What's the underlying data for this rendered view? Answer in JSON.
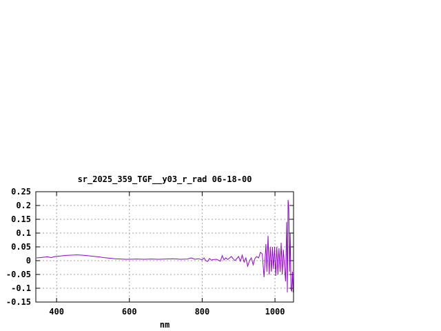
{
  "chart_data": {
    "type": "line",
    "title": "sr_2025_359_TGF__y03_r_rad 06-18-00",
    "xlabel": "nm",
    "ylabel": "",
    "xlim": [
      343,
      1051
    ],
    "ylim": [
      -0.15,
      0.25
    ],
    "grid": true,
    "x_ticks": [
      400,
      600,
      800,
      1000
    ],
    "x_tick_labels": [
      "400",
      "600",
      "800",
      "1000"
    ],
    "y_ticks": [
      -0.15,
      -0.1,
      -0.05,
      0,
      0.05,
      0.1,
      0.15,
      0.2,
      0.25
    ],
    "y_tick_labels": [
      "-0.15",
      "-0.1",
      "-0.05",
      "0",
      "0.05",
      "0.1",
      "0.15",
      "0.2",
      "0.25"
    ],
    "series_color": "#9400d3",
    "series": [
      {
        "x": [
          345,
          360,
          375,
          385,
          395,
          410,
          425,
          440,
          455,
          470,
          485,
          500,
          515,
          530,
          545,
          560,
          575,
          590,
          600,
          620,
          640,
          660,
          680,
          700,
          720,
          740,
          760,
          770,
          780,
          790,
          800,
          805,
          810,
          815,
          820,
          825,
          830,
          840,
          850,
          855,
          860,
          865,
          870,
          880,
          885,
          890,
          900,
          905,
          910,
          915,
          920,
          925,
          930,
          935,
          940,
          945,
          950,
          955,
          960,
          965,
          970,
          975,
          978,
          981,
          984,
          987,
          990,
          993,
          996,
          999,
          1002,
          1005,
          1008,
          1011,
          1014,
          1017,
          1020,
          1023,
          1026,
          1029,
          1032,
          1034,
          1036,
          1038,
          1040,
          1042,
          1044,
          1046,
          1048,
          1050
        ],
        "y": [
          0.01,
          0.012,
          0.014,
          0.011,
          0.015,
          0.017,
          0.019,
          0.02,
          0.021,
          0.02,
          0.018,
          0.016,
          0.014,
          0.011,
          0.009,
          0.007,
          0.006,
          0.005,
          0.005,
          0.006,
          0.005,
          0.006,
          0.005,
          0.006,
          0.007,
          0.005,
          0.006,
          0.01,
          0.005,
          0.007,
          0.003,
          0.01,
          0.0,
          -0.003,
          0.008,
          0.002,
          0.004,
          0.005,
          -0.002,
          0.018,
          0.003,
          0.01,
          0.004,
          0.015,
          0.007,
          0.0,
          0.015,
          -0.002,
          0.02,
          -0.005,
          0.01,
          -0.02,
          0.0,
          0.01,
          -0.015,
          0.008,
          0.015,
          0.01,
          0.03,
          0.025,
          -0.06,
          0.06,
          -0.04,
          0.09,
          -0.05,
          0.05,
          -0.04,
          0.05,
          -0.03,
          0.05,
          -0.055,
          0.05,
          -0.05,
          0.045,
          -0.04,
          0.065,
          -0.05,
          0.04,
          -0.02,
          -0.075,
          0.14,
          -0.115,
          0.22,
          0.19,
          -0.04,
          0.1,
          -0.105,
          -0.11,
          -0.04,
          -0.115
        ]
      }
    ]
  }
}
